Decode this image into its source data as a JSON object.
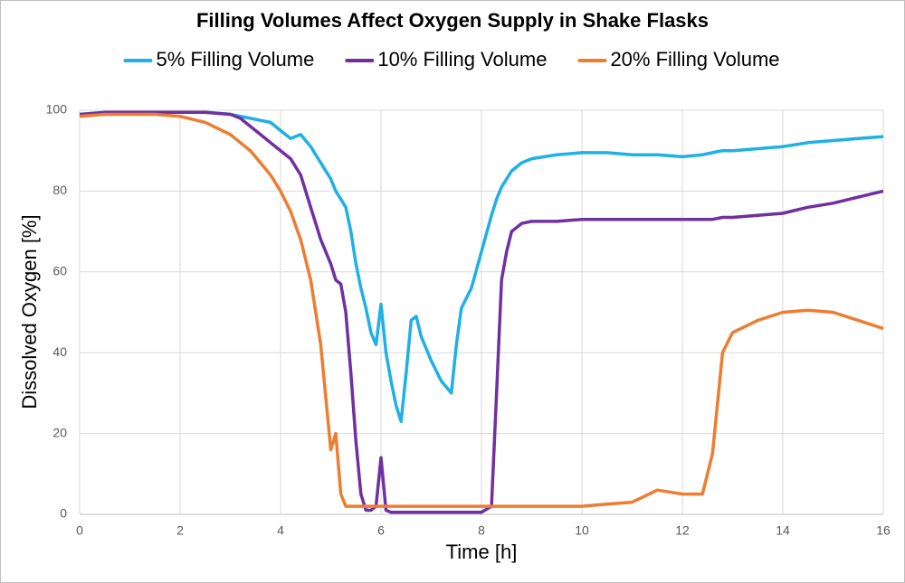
{
  "chart_data": {
    "type": "line",
    "title": "Filling Volumes Affect Oxygen Supply in Shake Flasks",
    "x_label": "Time [h]",
    "y_label": "Dissolved Oxygen [%]",
    "x": [
      0,
      0.5,
      1,
      1.5,
      2,
      2.5,
      3,
      3.2,
      3.4,
      3.6,
      3.8,
      4.0,
      4.2,
      4.4,
      4.6,
      4.8,
      5.0,
      5.1,
      5.2,
      5.3,
      5.4,
      5.5,
      5.6,
      5.7,
      5.8,
      5.9,
      6.0,
      6.1,
      6.2,
      6.3,
      6.4,
      6.5,
      6.6,
      6.7,
      6.8,
      7.0,
      7.2,
      7.4,
      7.5,
      7.6,
      7.8,
      8.0,
      8.2,
      8.3,
      8.4,
      8.5,
      8.6,
      8.8,
      9.0,
      9.5,
      10,
      10.5,
      11,
      11.5,
      12,
      12.4,
      12.6,
      12.8,
      13,
      13.5,
      14,
      14.5,
      15,
      15.5,
      16
    ],
    "series": [
      {
        "name": "5% Filling Volume",
        "color": "#1fb0e6",
        "values": [
          99,
          99,
          99.5,
          99.5,
          99.5,
          99.5,
          99,
          98.5,
          98,
          97.5,
          97,
          95,
          93,
          94,
          91,
          87,
          83,
          80,
          78,
          76,
          70,
          62,
          56,
          51,
          45,
          42,
          52,
          40,
          33,
          27,
          23,
          35,
          48,
          49,
          44,
          38,
          33,
          30,
          42,
          51,
          56,
          65,
          74,
          78,
          81,
          83,
          85,
          87,
          88,
          89,
          89.5,
          89.5,
          89,
          89,
          88.5,
          89,
          89.5,
          90,
          90,
          90.5,
          91,
          92,
          92.5,
          93,
          93.5
        ]
      },
      {
        "name": "10% Filling Volume",
        "color": "#7030a0",
        "values": [
          99,
          99.5,
          99.5,
          99.5,
          99.5,
          99.5,
          99,
          98,
          96,
          94,
          92,
          90,
          88,
          84,
          76,
          68,
          62,
          58,
          57,
          50,
          35,
          18,
          5,
          1,
          1,
          2,
          14,
          1,
          0.5,
          0.5,
          0.5,
          0.5,
          0.5,
          0.5,
          0.5,
          0.5,
          0.5,
          0.5,
          0.5,
          0.5,
          0.5,
          0.5,
          2,
          30,
          58,
          65,
          70,
          72,
          72.5,
          72.5,
          73,
          73,
          73,
          73,
          73,
          73,
          73,
          73.5,
          73.5,
          74,
          74.5,
          76,
          77,
          78.5,
          80
        ]
      },
      {
        "name": "20% Filling Volume",
        "color": "#ed7d31",
        "values": [
          98.5,
          99,
          99,
          99,
          98.5,
          97,
          94,
          92,
          90,
          87,
          84,
          80,
          75,
          68,
          58,
          42,
          16,
          20,
          5,
          2,
          2,
          2,
          2,
          2,
          2,
          2,
          2,
          2,
          2,
          2,
          2,
          2,
          2,
          2,
          2,
          2,
          2,
          2,
          2,
          2,
          2,
          2,
          2,
          2,
          2,
          2,
          2,
          2,
          2,
          2,
          2,
          2.5,
          3,
          6,
          5,
          5,
          15,
          40,
          45,
          48,
          50,
          50.5,
          50,
          48,
          46
        ]
      }
    ],
    "xlim": [
      0,
      16
    ],
    "xticks": [
      0,
      2,
      4,
      6,
      8,
      10,
      12,
      14,
      16
    ],
    "ylim": [
      0,
      100
    ],
    "yticks": [
      0,
      20,
      40,
      60,
      80,
      100
    ],
    "grid": true,
    "legend": "top"
  }
}
